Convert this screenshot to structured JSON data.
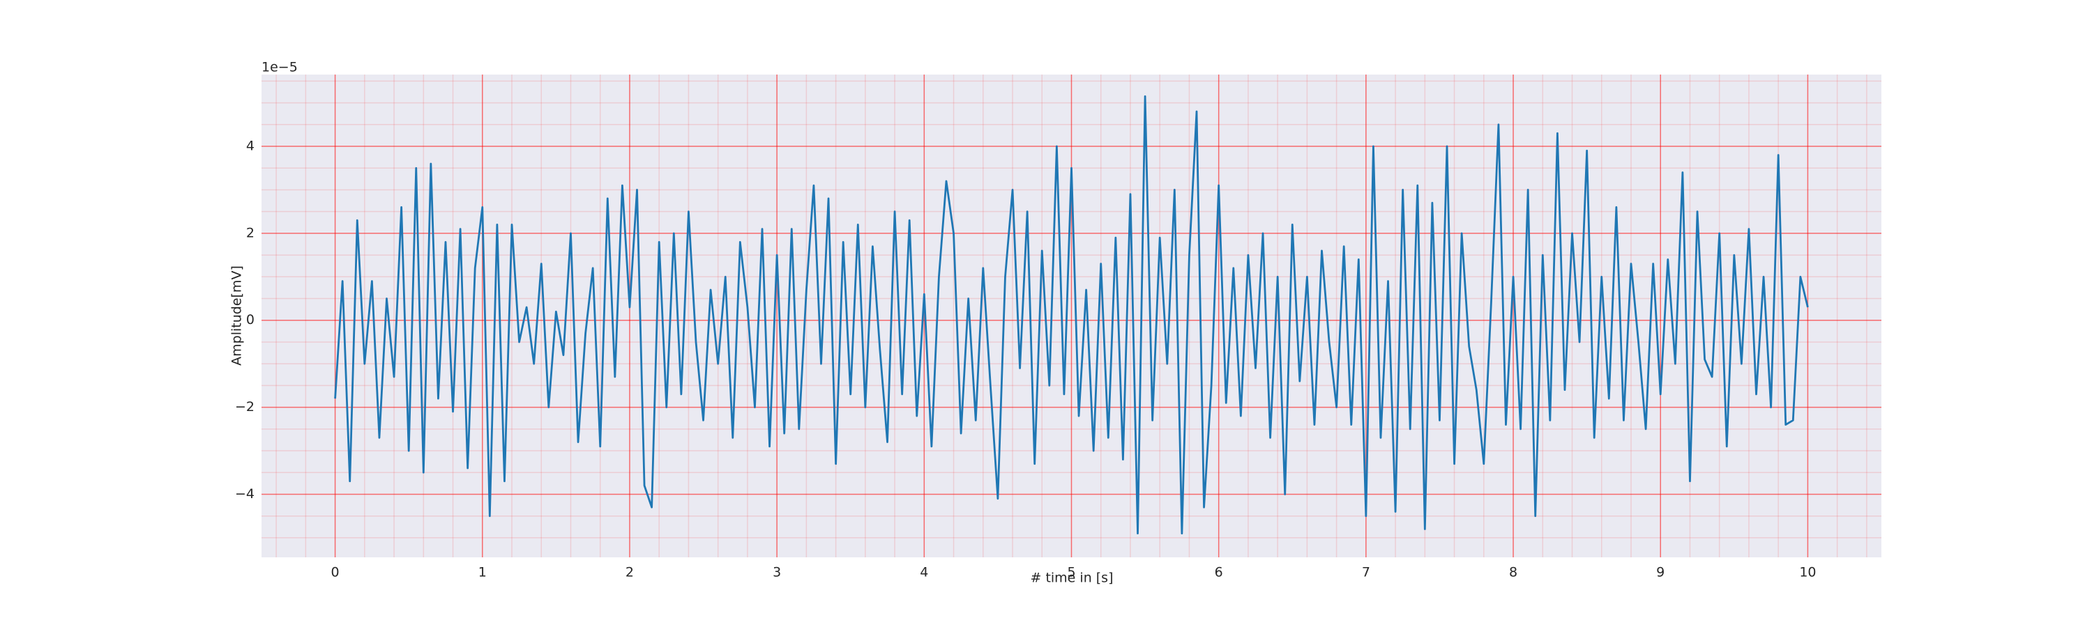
{
  "chart_data": {
    "type": "line",
    "xlabel": "# time in [s]",
    "ylabel": "Amplitude[mV]",
    "offset_label": "1e−5",
    "color": "#1f77b4",
    "background": "#eaeaf2",
    "grid": true,
    "grid_color": "#ff0000",
    "minor_grid": true,
    "xlim": [
      -0.5,
      10.5
    ],
    "ylim": [
      -5.45,
      5.65
    ],
    "xticks": [
      0,
      1,
      2,
      3,
      4,
      5,
      6,
      7,
      8,
      9,
      10
    ],
    "yticks": [
      {
        "value": -4,
        "label": "−4"
      },
      {
        "value": -2,
        "label": "−2"
      },
      0,
      2,
      4
    ],
    "xminorticks": [
      -0.4,
      -0.2,
      0.2,
      0.4,
      0.6,
      0.8,
      1.2,
      1.4,
      1.6,
      1.8,
      2.2,
      2.4,
      2.6,
      2.8,
      3.2,
      3.4,
      3.6,
      3.8,
      4.2,
      4.4,
      4.6,
      4.8,
      5.2,
      5.4,
      5.6,
      5.8,
      6.2,
      6.4,
      6.6,
      6.8,
      7.2,
      7.4,
      7.6,
      7.8,
      8.2,
      8.4,
      8.6,
      8.8,
      9.2,
      9.4,
      9.6,
      9.8,
      10.2,
      10.4
    ],
    "yminorticks": [
      -5,
      -4.5,
      -3.5,
      -3,
      -2.5,
      -1.5,
      -1,
      -0.5,
      0.5,
      1,
      1.5,
      2.5,
      3,
      3.5,
      4.5,
      5,
      5.5
    ],
    "x": [
      0,
      0.05,
      0.1,
      0.15,
      0.2,
      0.25,
      0.3,
      0.35,
      0.4,
      0.45,
      0.5,
      0.55,
      0.6,
      0.65,
      0.7,
      0.75,
      0.8,
      0.85,
      0.9,
      0.95,
      1,
      1.05,
      1.1,
      1.15,
      1.2,
      1.25,
      1.3,
      1.35,
      1.4,
      1.45,
      1.5,
      1.55,
      1.6,
      1.65,
      1.7,
      1.75,
      1.8,
      1.85,
      1.9,
      1.95,
      2,
      2.05,
      2.1,
      2.15,
      2.2,
      2.25,
      2.3,
      2.35,
      2.4,
      2.45,
      2.5,
      2.55,
      2.6,
      2.65,
      2.7,
      2.75,
      2.8,
      2.85,
      2.9,
      2.95,
      3,
      3.05,
      3.1,
      3.15,
      3.2,
      3.25,
      3.3,
      3.35,
      3.4,
      3.45,
      3.5,
      3.55,
      3.6,
      3.65,
      3.7,
      3.75,
      3.8,
      3.85,
      3.9,
      3.95,
      4,
      4.05,
      4.1,
      4.15,
      4.2,
      4.25,
      4.3,
      4.35,
      4.4,
      4.45,
      4.5,
      4.55,
      4.6,
      4.65,
      4.7,
      4.75,
      4.8,
      4.85,
      4.9,
      4.95,
      5,
      5.05,
      5.1,
      5.15,
      5.2,
      5.25,
      5.3,
      5.35,
      5.4,
      5.45,
      5.5,
      5.55,
      5.6,
      5.65,
      5.7,
      5.75,
      5.8,
      5.85,
      5.9,
      5.95,
      6,
      6.05,
      6.1,
      6.15,
      6.2,
      6.25,
      6.3,
      6.35,
      6.4,
      6.45,
      6.5,
      6.55,
      6.6,
      6.65,
      6.7,
      6.75,
      6.8,
      6.85,
      6.9,
      6.95,
      7,
      7.05,
      7.1,
      7.15,
      7.2,
      7.25,
      7.3,
      7.35,
      7.4,
      7.45,
      7.5,
      7.55,
      7.6,
      7.65,
      7.7,
      7.75,
      7.8,
      7.85,
      7.9,
      7.95,
      8,
      8.05,
      8.1,
      8.15,
      8.2,
      8.25,
      8.3,
      8.35,
      8.4,
      8.45,
      8.5,
      8.55,
      8.6,
      8.65,
      8.7,
      8.75,
      8.8,
      8.85,
      8.9,
      8.95,
      9,
      9.05,
      9.1,
      9.15,
      9.2,
      9.25,
      9.3,
      9.35,
      9.4,
      9.45,
      9.5,
      9.55,
      9.6,
      9.65,
      9.7,
      9.75,
      9.8,
      9.85,
      9.9,
      9.95,
      10
    ],
    "values": [
      -1.8,
      0.9,
      -3.7,
      2.3,
      -1.0,
      0.9,
      -2.7,
      0.5,
      -1.3,
      2.6,
      -3.0,
      3.5,
      -3.5,
      3.6,
      -1.8,
      1.8,
      -2.1,
      2.1,
      -3.4,
      1.2,
      2.6,
      -4.5,
      2.2,
      -3.7,
      2.2,
      -0.5,
      0.3,
      -1.0,
      1.3,
      -2.0,
      0.2,
      -0.8,
      2.0,
      -2.8,
      -0.3,
      1.2,
      -2.9,
      2.8,
      -1.3,
      3.1,
      0.3,
      3.0,
      -3.8,
      -4.3,
      1.8,
      -2.0,
      2.0,
      -1.7,
      2.5,
      -0.5,
      -2.3,
      0.7,
      -1.0,
      1.0,
      -2.7,
      1.8,
      0.3,
      -2.0,
      2.1,
      -2.9,
      1.5,
      -2.6,
      2.1,
      -2.5,
      0.7,
      3.1,
      -1.0,
      2.8,
      -3.3,
      1.8,
      -1.7,
      2.2,
      -2.0,
      1.7,
      -0.7,
      -2.8,
      2.5,
      -1.7,
      2.3,
      -2.2,
      0.6,
      -2.9,
      1.0,
      3.2,
      2.0,
      -2.6,
      0.5,
      -2.3,
      1.2,
      -1.5,
      -4.1,
      1.0,
      3.0,
      -1.1,
      2.5,
      -3.3,
      1.6,
      -1.5,
      4.0,
      -1.7,
      3.5,
      -2.2,
      0.7,
      -3.0,
      1.3,
      -2.7,
      1.9,
      -3.2,
      2.9,
      -4.9,
      5.15,
      -2.3,
      1.9,
      -1.0,
      3.0,
      -4.9,
      1.5,
      4.8,
      -4.3,
      -1.5,
      3.1,
      -1.9,
      1.2,
      -2.2,
      1.5,
      -1.1,
      2.0,
      -2.7,
      1.0,
      -4.0,
      2.2,
      -1.4,
      1.0,
      -2.4,
      1.6,
      -0.5,
      -2.0,
      1.7,
      -2.4,
      1.4,
      -4.5,
      4.0,
      -2.7,
      0.9,
      -4.4,
      3.0,
      -2.5,
      3.1,
      -4.8,
      2.7,
      -2.3,
      4.0,
      -3.3,
      2.0,
      -0.6,
      -1.6,
      -3.3,
      0.4,
      4.5,
      -2.4,
      1.0,
      -2.5,
      3.0,
      -4.5,
      1.5,
      -2.3,
      4.3,
      -1.6,
      2.0,
      -0.5,
      3.9,
      -2.7,
      1.0,
      -1.8,
      2.6,
      -2.3,
      1.3,
      -0.5,
      -2.5,
      1.3,
      -1.7,
      1.4,
      -1.0,
      3.4,
      -3.7,
      2.5,
      -0.9,
      -1.3,
      2.0,
      -2.9,
      1.5,
      -1.0,
      2.1,
      -1.7,
      1.0,
      -2.0,
      3.8,
      -2.4,
      -2.3,
      1.0,
      0.3
    ]
  }
}
